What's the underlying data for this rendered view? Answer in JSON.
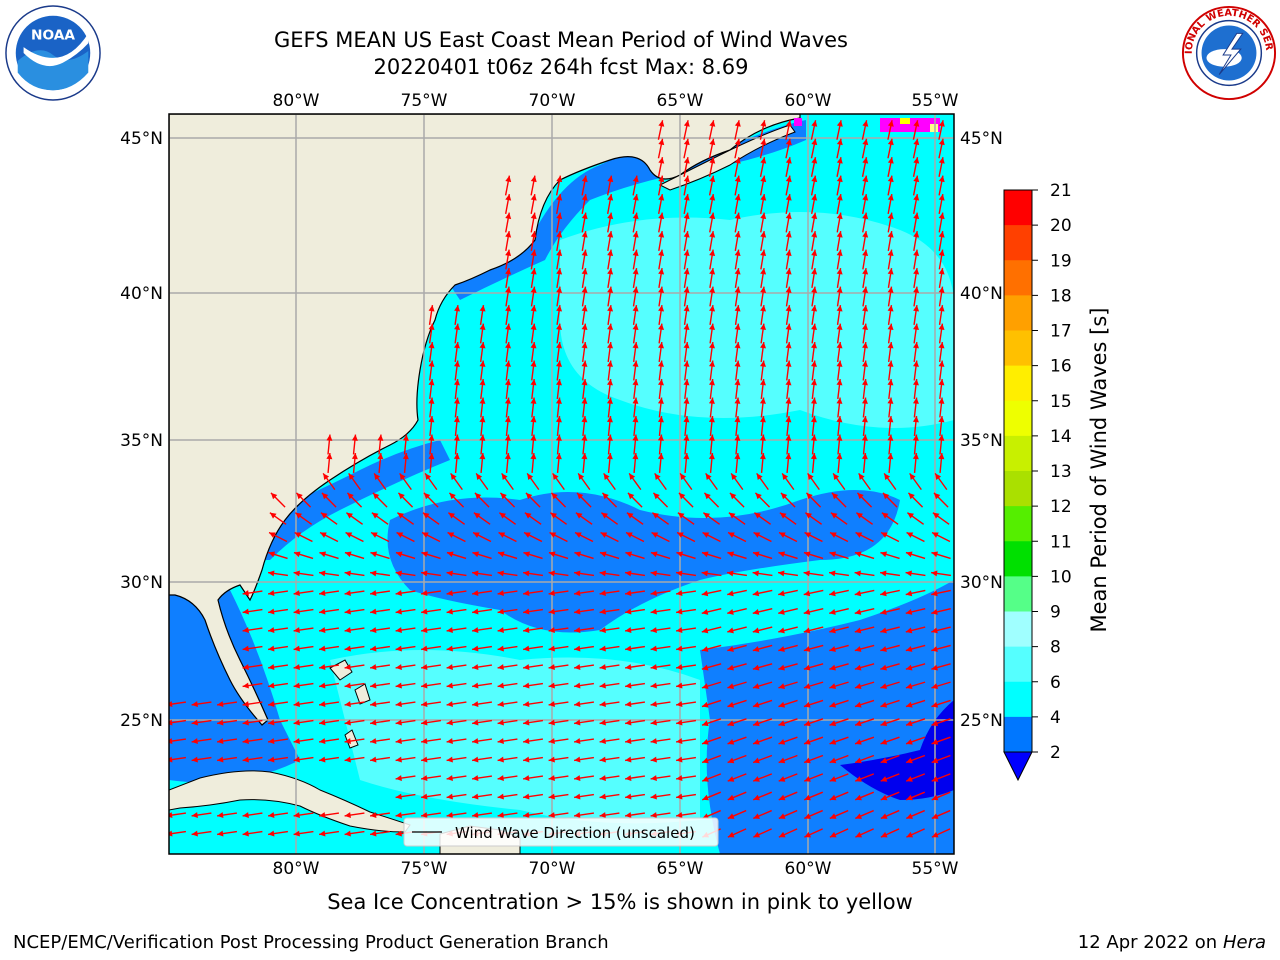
{
  "header": {
    "title_line1": "GEFS MEAN US East Coast Mean Period of Wind Waves",
    "title_line2": "20220401 t06z 264h fcst   Max: 8.69"
  },
  "logos": {
    "left": "NOAA",
    "right": "NATIONAL WEATHER SERVICE"
  },
  "map": {
    "lon_ticks": [
      "80°W",
      "75°W",
      "70°W",
      "65°W",
      "60°W",
      "55°W"
    ],
    "lat_ticks": [
      "45°N",
      "40°N",
      "35°N",
      "30°N",
      "25°N"
    ],
    "legend_label": "Wind Wave Direction (unscaled)",
    "colors": {
      "land": "#efeddc",
      "sea_light": "#00ffff",
      "sea_pale": "#55ffff",
      "sea_blue": "#0f7fff",
      "sea_dark": "#0000ee",
      "arrow": "#ff0000",
      "grid": "#aaaaaa",
      "ice_pink": "#ff00ff"
    }
  },
  "colorbar": {
    "label": "Mean Period of Wind Waves [s]",
    "ticks": [
      "2",
      "4",
      "6",
      "8",
      "9",
      "10",
      "11",
      "12",
      "13",
      "14",
      "15",
      "16",
      "17",
      "18",
      "19",
      "20",
      "21"
    ],
    "bins": [
      "#0000ff",
      "#0077ff",
      "#00ffff",
      "#55ffff",
      "#a0ffff",
      "#55ff88",
      "#00e000",
      "#55ee00",
      "#aae000",
      "#c8f000",
      "#eeff00",
      "#ffee00",
      "#ffc000",
      "#ffa000",
      "#ff7000",
      "#ff4000",
      "#ff0000"
    ]
  },
  "notes": {
    "ice": "Sea Ice Concentration > 15% is shown in pink to yellow"
  },
  "footer": {
    "left": "NCEP/EMC/Verification Post Processing Product Generation Branch",
    "date": "12 Apr 2022 on ",
    "host": "Hera"
  }
}
